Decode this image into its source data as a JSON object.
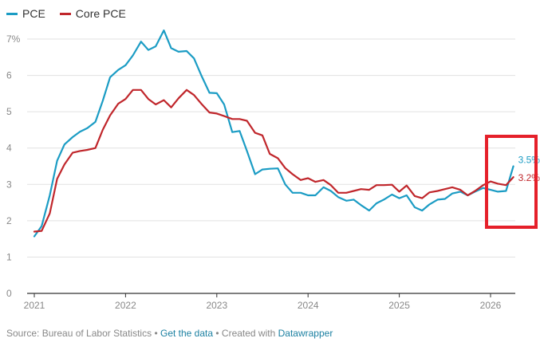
{
  "legend": [
    {
      "name": "PCE",
      "color": "#1b9cc4"
    },
    {
      "name": "Core PCE",
      "color": "#c0262b"
    }
  ],
  "footer": {
    "source": "Source: Bureau of Labor Statistics",
    "sep1": " • ",
    "get_data": "Get the data",
    "sep2": " • Created with ",
    "datawrapper": "Datawrapper"
  },
  "chart_data": {
    "type": "line",
    "xlabel": "",
    "ylabel": "",
    "xlim": [
      2021,
      2026.3
    ],
    "ylim": [
      0,
      7
    ],
    "yticks": [
      {
        "value": 0,
        "label": "0"
      },
      {
        "value": 1,
        "label": "1"
      },
      {
        "value": 2,
        "label": "2"
      },
      {
        "value": 3,
        "label": "3"
      },
      {
        "value": 4,
        "label": "4"
      },
      {
        "value": 5,
        "label": "5"
      },
      {
        "value": 6,
        "label": "6"
      },
      {
        "value": 7,
        "label": "7%"
      }
    ],
    "xticks": [
      {
        "value": 2021,
        "label": "2021"
      },
      {
        "value": 2022,
        "label": "2022"
      },
      {
        "value": 2023,
        "label": "2023"
      },
      {
        "value": 2024,
        "label": "2024"
      },
      {
        "value": 2025,
        "label": "2025"
      },
      {
        "value": 2026,
        "label": "2026"
      }
    ],
    "grid": true,
    "legend_position": "top-left",
    "series": [
      {
        "name": "PCE",
        "color": "#1b9cc4",
        "end_label": "3.5%",
        "points": [
          [
            2021.0,
            1.57
          ],
          [
            2021.08,
            1.85
          ],
          [
            2021.17,
            2.7
          ],
          [
            2021.25,
            3.65
          ],
          [
            2021.33,
            4.1
          ],
          [
            2021.42,
            4.3
          ],
          [
            2021.5,
            4.45
          ],
          [
            2021.58,
            4.55
          ],
          [
            2021.67,
            4.72
          ],
          [
            2021.75,
            5.3
          ],
          [
            2021.83,
            5.95
          ],
          [
            2021.92,
            6.15
          ],
          [
            2022.0,
            6.28
          ],
          [
            2022.08,
            6.55
          ],
          [
            2022.17,
            6.93
          ],
          [
            2022.25,
            6.7
          ],
          [
            2022.33,
            6.8
          ],
          [
            2022.42,
            7.24
          ],
          [
            2022.5,
            6.75
          ],
          [
            2022.58,
            6.65
          ],
          [
            2022.67,
            6.67
          ],
          [
            2022.75,
            6.47
          ],
          [
            2022.83,
            6.0
          ],
          [
            2022.92,
            5.52
          ],
          [
            2023.0,
            5.51
          ],
          [
            2023.08,
            5.2
          ],
          [
            2023.17,
            4.44
          ],
          [
            2023.25,
            4.47
          ],
          [
            2023.33,
            3.92
          ],
          [
            2023.42,
            3.28
          ],
          [
            2023.5,
            3.41
          ],
          [
            2023.58,
            3.43
          ],
          [
            2023.67,
            3.44
          ],
          [
            2023.75,
            3.0
          ],
          [
            2023.83,
            2.77
          ],
          [
            2023.92,
            2.77
          ],
          [
            2024.0,
            2.7
          ],
          [
            2024.08,
            2.7
          ],
          [
            2024.17,
            2.92
          ],
          [
            2024.25,
            2.82
          ],
          [
            2024.33,
            2.65
          ],
          [
            2024.42,
            2.55
          ],
          [
            2024.5,
            2.58
          ],
          [
            2024.58,
            2.43
          ],
          [
            2024.67,
            2.28
          ],
          [
            2024.75,
            2.48
          ],
          [
            2024.83,
            2.58
          ],
          [
            2024.92,
            2.72
          ],
          [
            2025.0,
            2.62
          ],
          [
            2025.08,
            2.7
          ],
          [
            2025.17,
            2.37
          ],
          [
            2025.25,
            2.28
          ],
          [
            2025.33,
            2.45
          ],
          [
            2025.42,
            2.58
          ],
          [
            2025.5,
            2.6
          ],
          [
            2025.58,
            2.75
          ],
          [
            2025.67,
            2.8
          ],
          [
            2025.75,
            2.7
          ],
          [
            2025.83,
            2.8
          ],
          [
            2025.92,
            2.9
          ],
          [
            2026.0,
            2.85
          ],
          [
            2026.08,
            2.8
          ],
          [
            2026.17,
            2.82
          ],
          [
            2026.25,
            3.5
          ]
        ]
      },
      {
        "name": "Core PCE",
        "color": "#c0262b",
        "end_label": "3.2%",
        "points": [
          [
            2021.0,
            1.7
          ],
          [
            2021.08,
            1.72
          ],
          [
            2021.17,
            2.2
          ],
          [
            2021.25,
            3.15
          ],
          [
            2021.33,
            3.55
          ],
          [
            2021.42,
            3.87
          ],
          [
            2021.5,
            3.92
          ],
          [
            2021.58,
            3.95
          ],
          [
            2021.67,
            4.0
          ],
          [
            2021.75,
            4.5
          ],
          [
            2021.83,
            4.9
          ],
          [
            2021.92,
            5.22
          ],
          [
            2022.0,
            5.35
          ],
          [
            2022.08,
            5.6
          ],
          [
            2022.17,
            5.6
          ],
          [
            2022.25,
            5.35
          ],
          [
            2022.33,
            5.2
          ],
          [
            2022.42,
            5.32
          ],
          [
            2022.5,
            5.12
          ],
          [
            2022.58,
            5.37
          ],
          [
            2022.67,
            5.6
          ],
          [
            2022.75,
            5.46
          ],
          [
            2022.83,
            5.22
          ],
          [
            2022.92,
            4.98
          ],
          [
            2023.0,
            4.95
          ],
          [
            2023.08,
            4.88
          ],
          [
            2023.17,
            4.8
          ],
          [
            2023.25,
            4.8
          ],
          [
            2023.33,
            4.75
          ],
          [
            2023.42,
            4.42
          ],
          [
            2023.5,
            4.35
          ],
          [
            2023.58,
            3.84
          ],
          [
            2023.67,
            3.72
          ],
          [
            2023.75,
            3.45
          ],
          [
            2023.83,
            3.28
          ],
          [
            2023.92,
            3.12
          ],
          [
            2024.0,
            3.17
          ],
          [
            2024.08,
            3.07
          ],
          [
            2024.17,
            3.12
          ],
          [
            2024.25,
            2.98
          ],
          [
            2024.33,
            2.77
          ],
          [
            2024.42,
            2.77
          ],
          [
            2024.5,
            2.82
          ],
          [
            2024.58,
            2.87
          ],
          [
            2024.67,
            2.85
          ],
          [
            2024.75,
            2.98
          ],
          [
            2024.83,
            2.98
          ],
          [
            2024.92,
            2.99
          ],
          [
            2025.0,
            2.8
          ],
          [
            2025.08,
            2.97
          ],
          [
            2025.17,
            2.68
          ],
          [
            2025.25,
            2.62
          ],
          [
            2025.33,
            2.78
          ],
          [
            2025.42,
            2.82
          ],
          [
            2025.5,
            2.87
          ],
          [
            2025.58,
            2.92
          ],
          [
            2025.67,
            2.85
          ],
          [
            2025.75,
            2.7
          ],
          [
            2025.83,
            2.82
          ],
          [
            2025.92,
            2.98
          ],
          [
            2026.0,
            3.08
          ],
          [
            2026.08,
            3.02
          ],
          [
            2026.17,
            2.98
          ],
          [
            2026.25,
            3.2
          ]
        ]
      }
    ],
    "highlight_box_color": "#e5202a"
  }
}
